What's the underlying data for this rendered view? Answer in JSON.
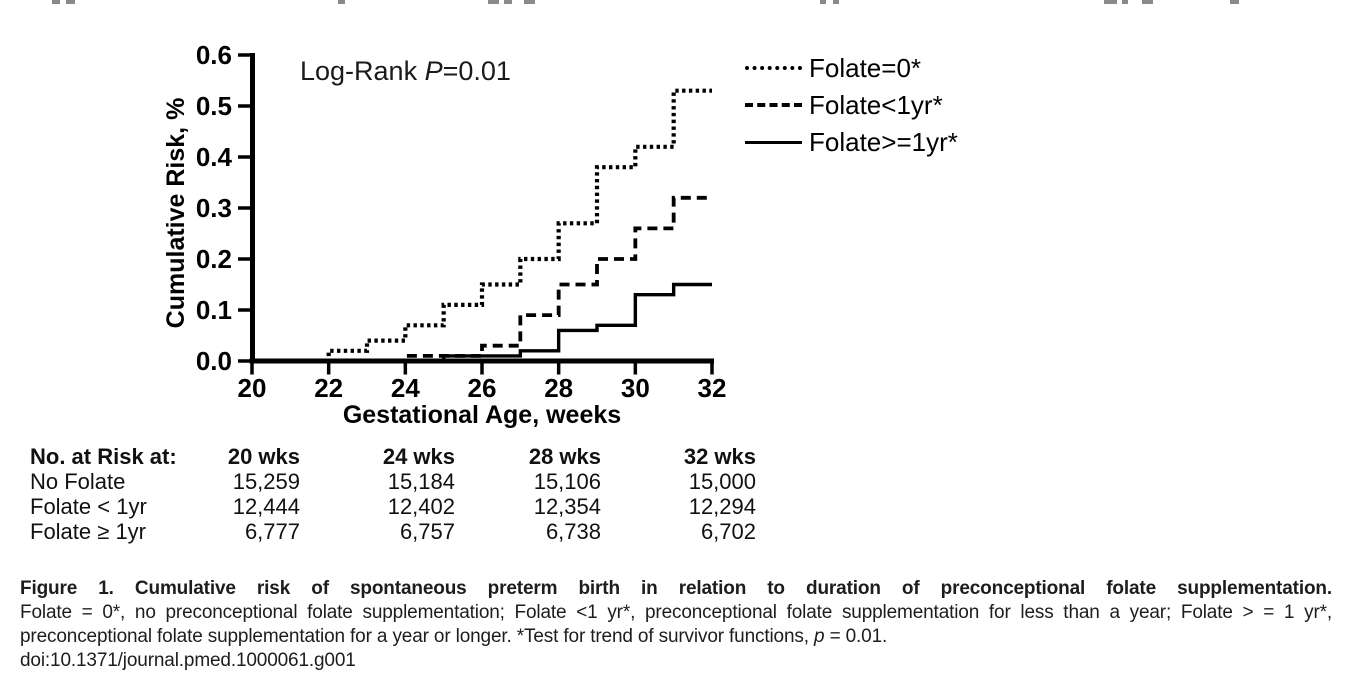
{
  "top_cropped_line": {
    "fragments": [
      [
        52,
        8
      ],
      [
        66,
        9
      ],
      [
        338,
        7
      ],
      [
        488,
        11
      ],
      [
        504,
        8
      ],
      [
        524,
        11
      ],
      [
        820,
        6
      ],
      [
        833,
        6
      ],
      [
        1104,
        13
      ],
      [
        1122,
        6
      ],
      [
        1142,
        11
      ],
      [
        1230,
        9
      ]
    ]
  },
  "chart": {
    "annotation": {
      "pre": "Log-Rank ",
      "italic": "P",
      "post": "=0.01"
    }
  },
  "chart_data": {
    "type": "line",
    "subtype": "step-cumulative-risk",
    "title": "",
    "xlabel": "Gestational Age, weeks",
    "ylabel": "Cumulative Risk, %",
    "xlim": [
      20,
      32
    ],
    "ylim": [
      0,
      0.6
    ],
    "xticks": [
      "20",
      "22",
      "24",
      "26",
      "28",
      "30",
      "32"
    ],
    "yticks": [
      "0.0",
      "0.1",
      "0.2",
      "0.3",
      "0.4",
      "0.5",
      "0.6"
    ],
    "grid": false,
    "annotation": "Log-Rank P=0.01",
    "legend_position": "outside upper right",
    "line_color": "#000000",
    "series": [
      {
        "name": "Folate=0*",
        "line_style": "dotted",
        "steps": [
          [
            20,
            0
          ],
          [
            22,
            0.02
          ],
          [
            23,
            0.04
          ],
          [
            24,
            0.07
          ],
          [
            25,
            0.11
          ],
          [
            26,
            0.15
          ],
          [
            27,
            0.2
          ],
          [
            28,
            0.27
          ],
          [
            29,
            0.38
          ],
          [
            30,
            0.42
          ],
          [
            31,
            0.53
          ],
          [
            32,
            0.53
          ]
        ]
      },
      {
        "name": "Folate<1yr*",
        "line_style": "dashed",
        "steps": [
          [
            20,
            0
          ],
          [
            24,
            0.01
          ],
          [
            26,
            0.03
          ],
          [
            27,
            0.09
          ],
          [
            28,
            0.15
          ],
          [
            29,
            0.2
          ],
          [
            30,
            0.26
          ],
          [
            31,
            0.32
          ],
          [
            32,
            0.32
          ]
        ]
      },
      {
        "name": "Folate>=1yr*",
        "line_style": "solid",
        "steps": [
          [
            20,
            0
          ],
          [
            25,
            0.01
          ],
          [
            27,
            0.02
          ],
          [
            28,
            0.06
          ],
          [
            29,
            0.07
          ],
          [
            30,
            0.13
          ],
          [
            31,
            0.15
          ],
          [
            32,
            0.15
          ]
        ]
      }
    ]
  },
  "risk_table": {
    "header": [
      "No. at Risk at:",
      "20 wks",
      "24 wks",
      "28 wks",
      "32 wks"
    ],
    "rows": [
      [
        "No Folate",
        "15,259",
        "15,184",
        "15,106",
        "15,000"
      ],
      [
        "Folate < 1yr",
        "12,444",
        "12,402",
        "12,354",
        "12,294"
      ],
      [
        "Folate ≥ 1yr",
        "6,777",
        "6,757",
        "6,738",
        "6,702"
      ]
    ]
  },
  "caption": {
    "title": "Figure 1. Cumulative risk of spontaneous preterm birth in relation to duration of preconceptional folate supplementation.",
    "line2": "Folate = 0*, no preconceptional folate supplementation; Folate <1 yr*, preconceptional folate supplementation for less than a year; Folate > = 1 yr*,",
    "line3_pre": "preconceptional folate supplementation for a year or longer. *Test for trend of survivor functions, ",
    "line3_italic": "p",
    "line3_post": " = 0.01.",
    "doi": "doi:10.1371/journal.pmed.1000061.g001"
  }
}
